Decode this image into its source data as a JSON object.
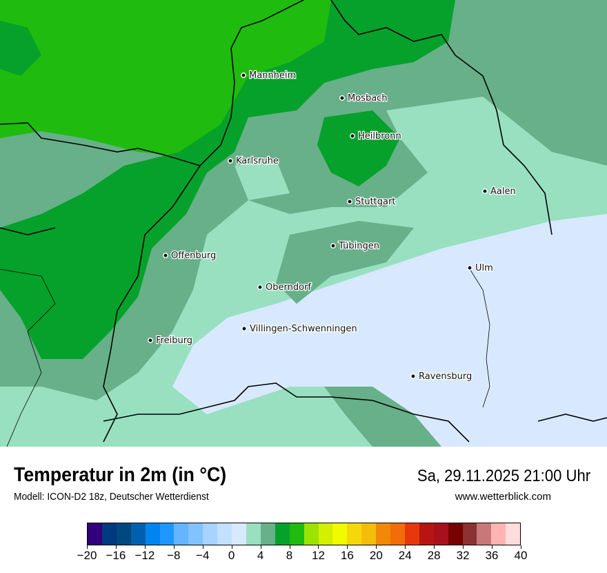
{
  "header": {
    "title": "Temperatur in 2m (in °C)",
    "subtitle": "Modell: ICON-D2 18z, Deutscher Wetterdienst",
    "datetime": "Sa, 29.11.2025 21:00 Uhr",
    "website": "www.wetterblick.com"
  },
  "cities": [
    {
      "name": "Mannheim"
    },
    {
      "name": "Mosbach"
    },
    {
      "name": "Heilbronn"
    },
    {
      "name": "Karlsruhe"
    },
    {
      "name": "Aalen"
    },
    {
      "name": "Stuttgart"
    },
    {
      "name": "Tübingen"
    },
    {
      "name": "Offenburg"
    },
    {
      "name": "Ulm"
    },
    {
      "name": "Oberndorf"
    },
    {
      "name": "Villingen-Schwenningen"
    },
    {
      "name": "Freiburg"
    },
    {
      "name": "Ravensburg"
    }
  ],
  "legend": {
    "unit": "°C",
    "min": -20,
    "max": 40,
    "step": 2,
    "tick_labels": [
      "−20",
      "−16",
      "−12",
      "−8",
      "−4",
      "0",
      "4",
      "8",
      "12",
      "16",
      "20",
      "24",
      "28",
      "32",
      "36",
      "40"
    ],
    "colors": [
      "#32007c",
      "#003a7e",
      "#00487e",
      "#0060b0",
      "#0085ee",
      "#2097ff",
      "#64b4ff",
      "#82c3ff",
      "#a6d3ff",
      "#c3e0ff",
      "#d8e9ff",
      "#98e0c0",
      "#67b08a",
      "#05a12a",
      "#1fbb0e",
      "#9ce304",
      "#d2f000",
      "#f0fb00",
      "#f4d80c",
      "#f4bd0c",
      "#f28808",
      "#f26c0a",
      "#e6380c",
      "#b81414",
      "#a8101c",
      "#780000",
      "#8b3232",
      "#c87878",
      "#ffb4b4",
      "#ffdcdc"
    ]
  }
}
